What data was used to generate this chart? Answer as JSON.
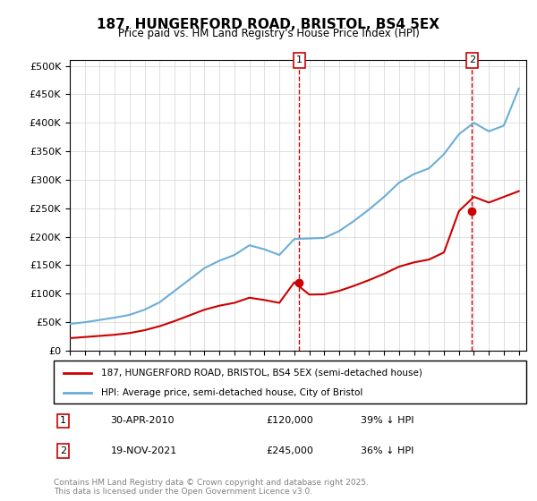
{
  "title": "187, HUNGERFORD ROAD, BRISTOL, BS4 5EX",
  "subtitle": "Price paid vs. HM Land Registry's House Price Index (HPI)",
  "legend_line1": "187, HUNGERFORD ROAD, BRISTOL, BS4 5EX (semi-detached house)",
  "legend_line2": "HPI: Average price, semi-detached house, City of Bristol",
  "footnote": "Contains HM Land Registry data © Crown copyright and database right 2025.\nThis data is licensed under the Open Government Licence v3.0.",
  "annotation1_label": "1",
  "annotation1_date": "30-APR-2010",
  "annotation1_price": "£120,000",
  "annotation1_hpi": "39% ↓ HPI",
  "annotation2_label": "2",
  "annotation2_date": "19-NOV-2021",
  "annotation2_price": "£245,000",
  "annotation2_hpi": "36% ↓ HPI",
  "sale1_x": 2010.33,
  "sale1_y": 120000,
  "sale2_x": 2021.88,
  "sale2_y": 245000,
  "hpi_color": "#6baed6",
  "price_color": "#cc0000",
  "vline_color": "#cc0000",
  "ylim": [
    0,
    510000
  ],
  "xlim": [
    1995,
    2025.5
  ],
  "hpi_years": [
    1995,
    1996,
    1997,
    1998,
    1999,
    2000,
    2001,
    2002,
    2003,
    2004,
    2005,
    2006,
    2007,
    2008,
    2009,
    2010,
    2011,
    2012,
    2013,
    2014,
    2015,
    2016,
    2017,
    2018,
    2019,
    2020,
    2021,
    2022,
    2023,
    2024,
    2025
  ],
  "hpi_values": [
    47000,
    50000,
    54000,
    58000,
    63000,
    72000,
    85000,
    105000,
    125000,
    145000,
    158000,
    168000,
    185000,
    178000,
    168000,
    196000,
    197000,
    198000,
    210000,
    228000,
    248000,
    270000,
    295000,
    310000,
    320000,
    345000,
    380000,
    400000,
    385000,
    395000,
    460000
  ],
  "price_years": [
    1995,
    1996,
    1997,
    1998,
    1999,
    2000,
    2001,
    2002,
    2003,
    2004,
    2005,
    2006,
    2007,
    2008,
    2009,
    2010,
    2011,
    2012,
    2013,
    2014,
    2015,
    2016,
    2017,
    2018,
    2019,
    2020,
    2021,
    2022,
    2023,
    2024,
    2025
  ],
  "price_values": [
    22000,
    24000,
    26000,
    28000,
    31000,
    36000,
    43000,
    52000,
    62000,
    72000,
    79000,
    84000,
    93000,
    89000,
    84000,
    120000,
    98500,
    99000,
    105000,
    114000,
    124000,
    135000,
    147500,
    155000,
    160000,
    172500,
    245000,
    270000,
    260000,
    270000,
    280000
  ]
}
